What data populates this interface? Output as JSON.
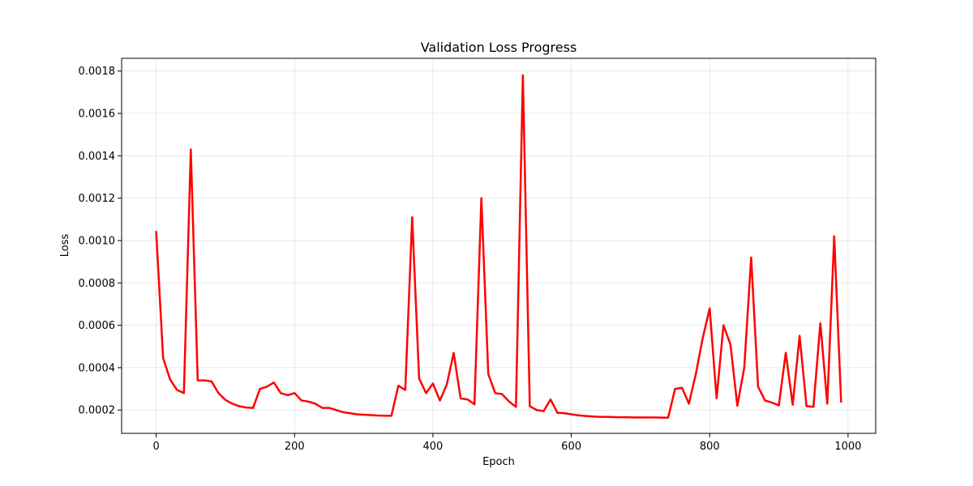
{
  "chart_data": {
    "type": "line",
    "title": "Validation Loss Progress",
    "xlabel": "Epoch",
    "ylabel": "Loss",
    "xlim": [
      -50,
      1040
    ],
    "ylim": [
      9e-05,
      0.00186
    ],
    "xticks": [
      0,
      200,
      400,
      600,
      800,
      1000
    ],
    "xtick_labels": [
      "0",
      "200",
      "400",
      "600",
      "800",
      "1000"
    ],
    "yticks": [
      0.0002,
      0.0004,
      0.0006,
      0.0008,
      0.001,
      0.0012,
      0.0014,
      0.0016,
      0.0018
    ],
    "ytick_labels": [
      "0.0002",
      "0.0004",
      "0.0006",
      "0.0008",
      "0.0010",
      "0.0012",
      "0.0014",
      "0.0016",
      "0.0018"
    ],
    "grid": true,
    "line_color": "#ff0000",
    "series": [
      {
        "x": [
          0,
          10,
          20,
          30,
          40,
          50,
          60,
          70,
          80,
          90,
          100,
          110,
          120,
          130,
          140,
          150,
          160,
          170,
          180,
          190,
          200,
          210,
          220,
          230,
          240,
          250,
          260,
          270,
          280,
          290,
          300,
          310,
          320,
          330,
          340,
          350,
          360,
          370,
          380,
          390,
          400,
          410,
          420,
          430,
          440,
          450,
          460,
          470,
          480,
          490,
          500,
          510,
          520,
          530,
          540,
          550,
          560,
          570,
          580,
          590,
          600,
          610,
          620,
          630,
          640,
          650,
          660,
          670,
          680,
          690,
          700,
          710,
          720,
          730,
          740,
          750,
          760,
          770,
          780,
          790,
          800,
          810,
          820,
          830,
          840,
          850,
          860,
          870,
          880,
          890,
          900,
          910,
          920,
          930,
          940,
          950,
          960,
          970,
          980,
          990
        ],
        "values": [
          0.00104,
          0.000445,
          0.000345,
          0.000295,
          0.00028,
          0.00143,
          0.00034,
          0.00034,
          0.000335,
          0.00028,
          0.000248,
          0.00023,
          0.000218,
          0.000212,
          0.00021,
          0.0003,
          0.00031,
          0.00033,
          0.00028,
          0.00027,
          0.00028,
          0.000245,
          0.00024,
          0.00023,
          0.00021,
          0.00021,
          0.0002,
          0.00019,
          0.000185,
          0.00018,
          0.000178,
          0.000176,
          0.000174,
          0.000173,
          0.000173,
          0.000315,
          0.000295,
          0.00111,
          0.00035,
          0.00028,
          0.000325,
          0.000245,
          0.00032,
          0.00047,
          0.000255,
          0.00025,
          0.000227,
          0.0012,
          0.00037,
          0.00028,
          0.000275,
          0.00024,
          0.000215,
          0.00178,
          0.000218,
          0.0002,
          0.000195,
          0.00025,
          0.000187,
          0.000185,
          0.00018,
          0.000175,
          0.000172,
          0.00017,
          0.000168,
          0.000168,
          0.000167,
          0.000166,
          0.000166,
          0.000165,
          0.000165,
          0.000165,
          0.000165,
          0.000164,
          0.000164,
          0.0003,
          0.000305,
          0.00023,
          0.00037,
          0.00054,
          0.00068,
          0.000255,
          0.0006,
          0.00051,
          0.00022,
          0.0004,
          0.00092,
          0.00031,
          0.000245,
          0.000235,
          0.000222,
          0.00047,
          0.000225,
          0.00055,
          0.000218,
          0.000215,
          0.00061,
          0.00023,
          0.00102,
          0.00024
        ]
      }
    ]
  }
}
